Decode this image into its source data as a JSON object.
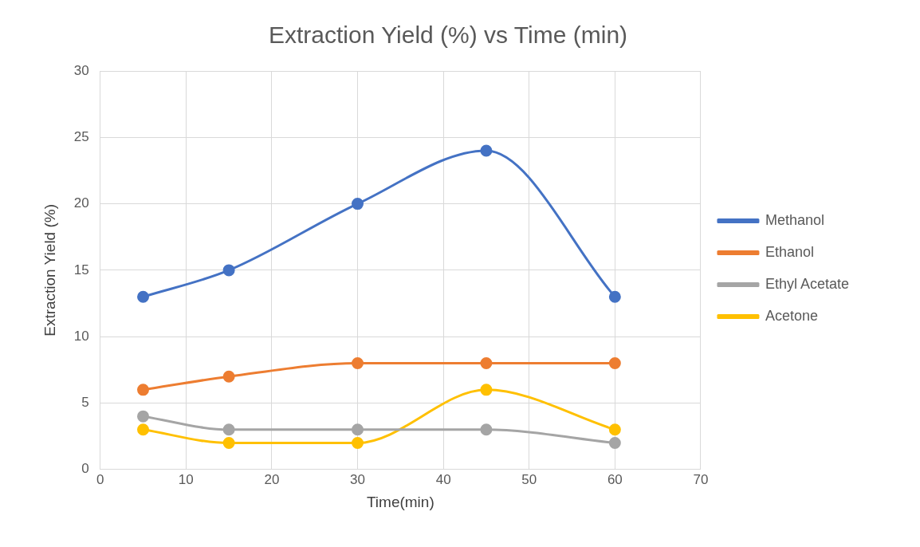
{
  "chart_data": {
    "type": "line",
    "title": "Extraction Yield (%) vs Time (min)",
    "xlabel": "Time(min)",
    "ylabel": "Extraction Yield (%)",
    "x": [
      5,
      15,
      30,
      45,
      60
    ],
    "series": [
      {
        "name": "Methanol",
        "color": "#4472c4",
        "values": [
          13,
          15,
          20,
          24,
          13
        ]
      },
      {
        "name": "Ethanol",
        "color": "#ed7d31",
        "values": [
          6,
          7,
          8,
          8,
          8
        ]
      },
      {
        "name": "Ethyl Acetate",
        "color": "#a5a5a5",
        "values": [
          4,
          3,
          3,
          3,
          2
        ]
      },
      {
        "name": "Acetone",
        "color": "#ffc000",
        "values": [
          3,
          2,
          2,
          6,
          3
        ]
      }
    ],
    "xlim": [
      0,
      70
    ],
    "xticks": [
      0,
      10,
      20,
      30,
      40,
      50,
      60,
      70
    ],
    "ylim": [
      0,
      30
    ],
    "yticks": [
      0,
      5,
      10,
      15,
      20,
      25,
      30
    ],
    "grid": true,
    "legend": "right",
    "marker": "circle",
    "line_style": "solid"
  }
}
